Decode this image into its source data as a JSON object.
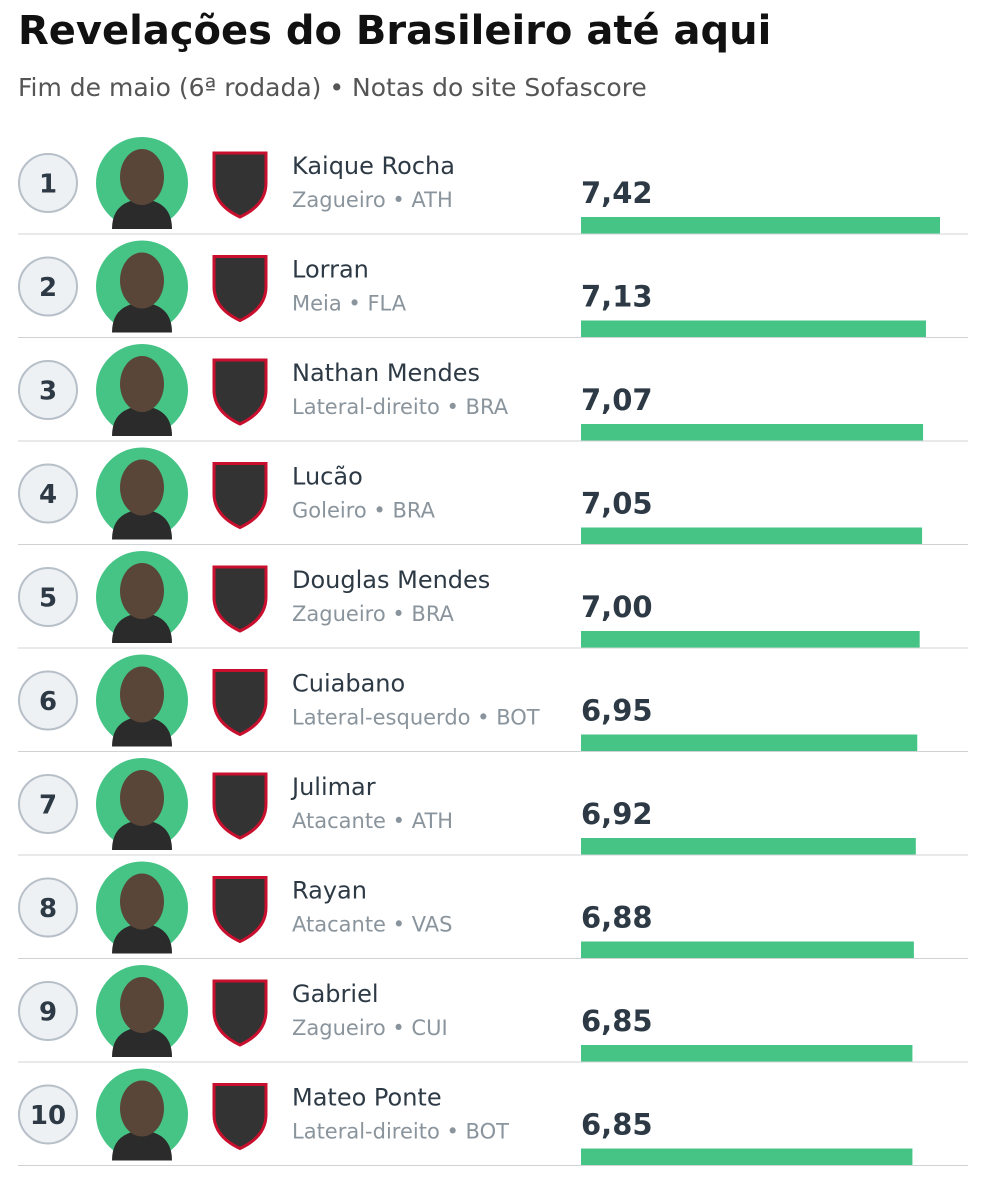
{
  "chart_data": {
    "type": "bar",
    "title": "Revelações do Brasileiro até aqui",
    "subtitle": "Fim de maio (6ª rodada) • Notas do site Sofascore",
    "ranks": [
      1,
      2,
      3,
      4,
      5,
      6,
      7,
      8,
      9,
      10
    ],
    "categories": [
      "Kaique Rocha",
      "Lorran",
      "Nathan Mendes",
      "Lucão",
      "Douglas Mendes",
      "Cuiabano",
      "Julimar",
      "Rayan",
      "Gabriel",
      "Mateo Ponte"
    ],
    "details": [
      "Zagueiro • ATH",
      "Meia • FLA",
      "Lateral-direito • BRA",
      "Goleiro • BRA",
      "Zagueiro • BRA",
      "Lateral-esquerdo • BOT",
      "Atacante • ATH",
      "Atacante • VAS",
      "Zagueiro • CUI",
      "Lateral-direito • BOT"
    ],
    "values": [
      7.42,
      7.13,
      7.07,
      7.05,
      7.0,
      6.95,
      6.92,
      6.88,
      6.85,
      6.85
    ],
    "value_labels": [
      "7,42",
      "7,13",
      "7,07",
      "7,05",
      "7,00",
      "6,95",
      "6,92",
      "6,88",
      "6,85",
      "6,85"
    ],
    "color": "#45c486"
  }
}
